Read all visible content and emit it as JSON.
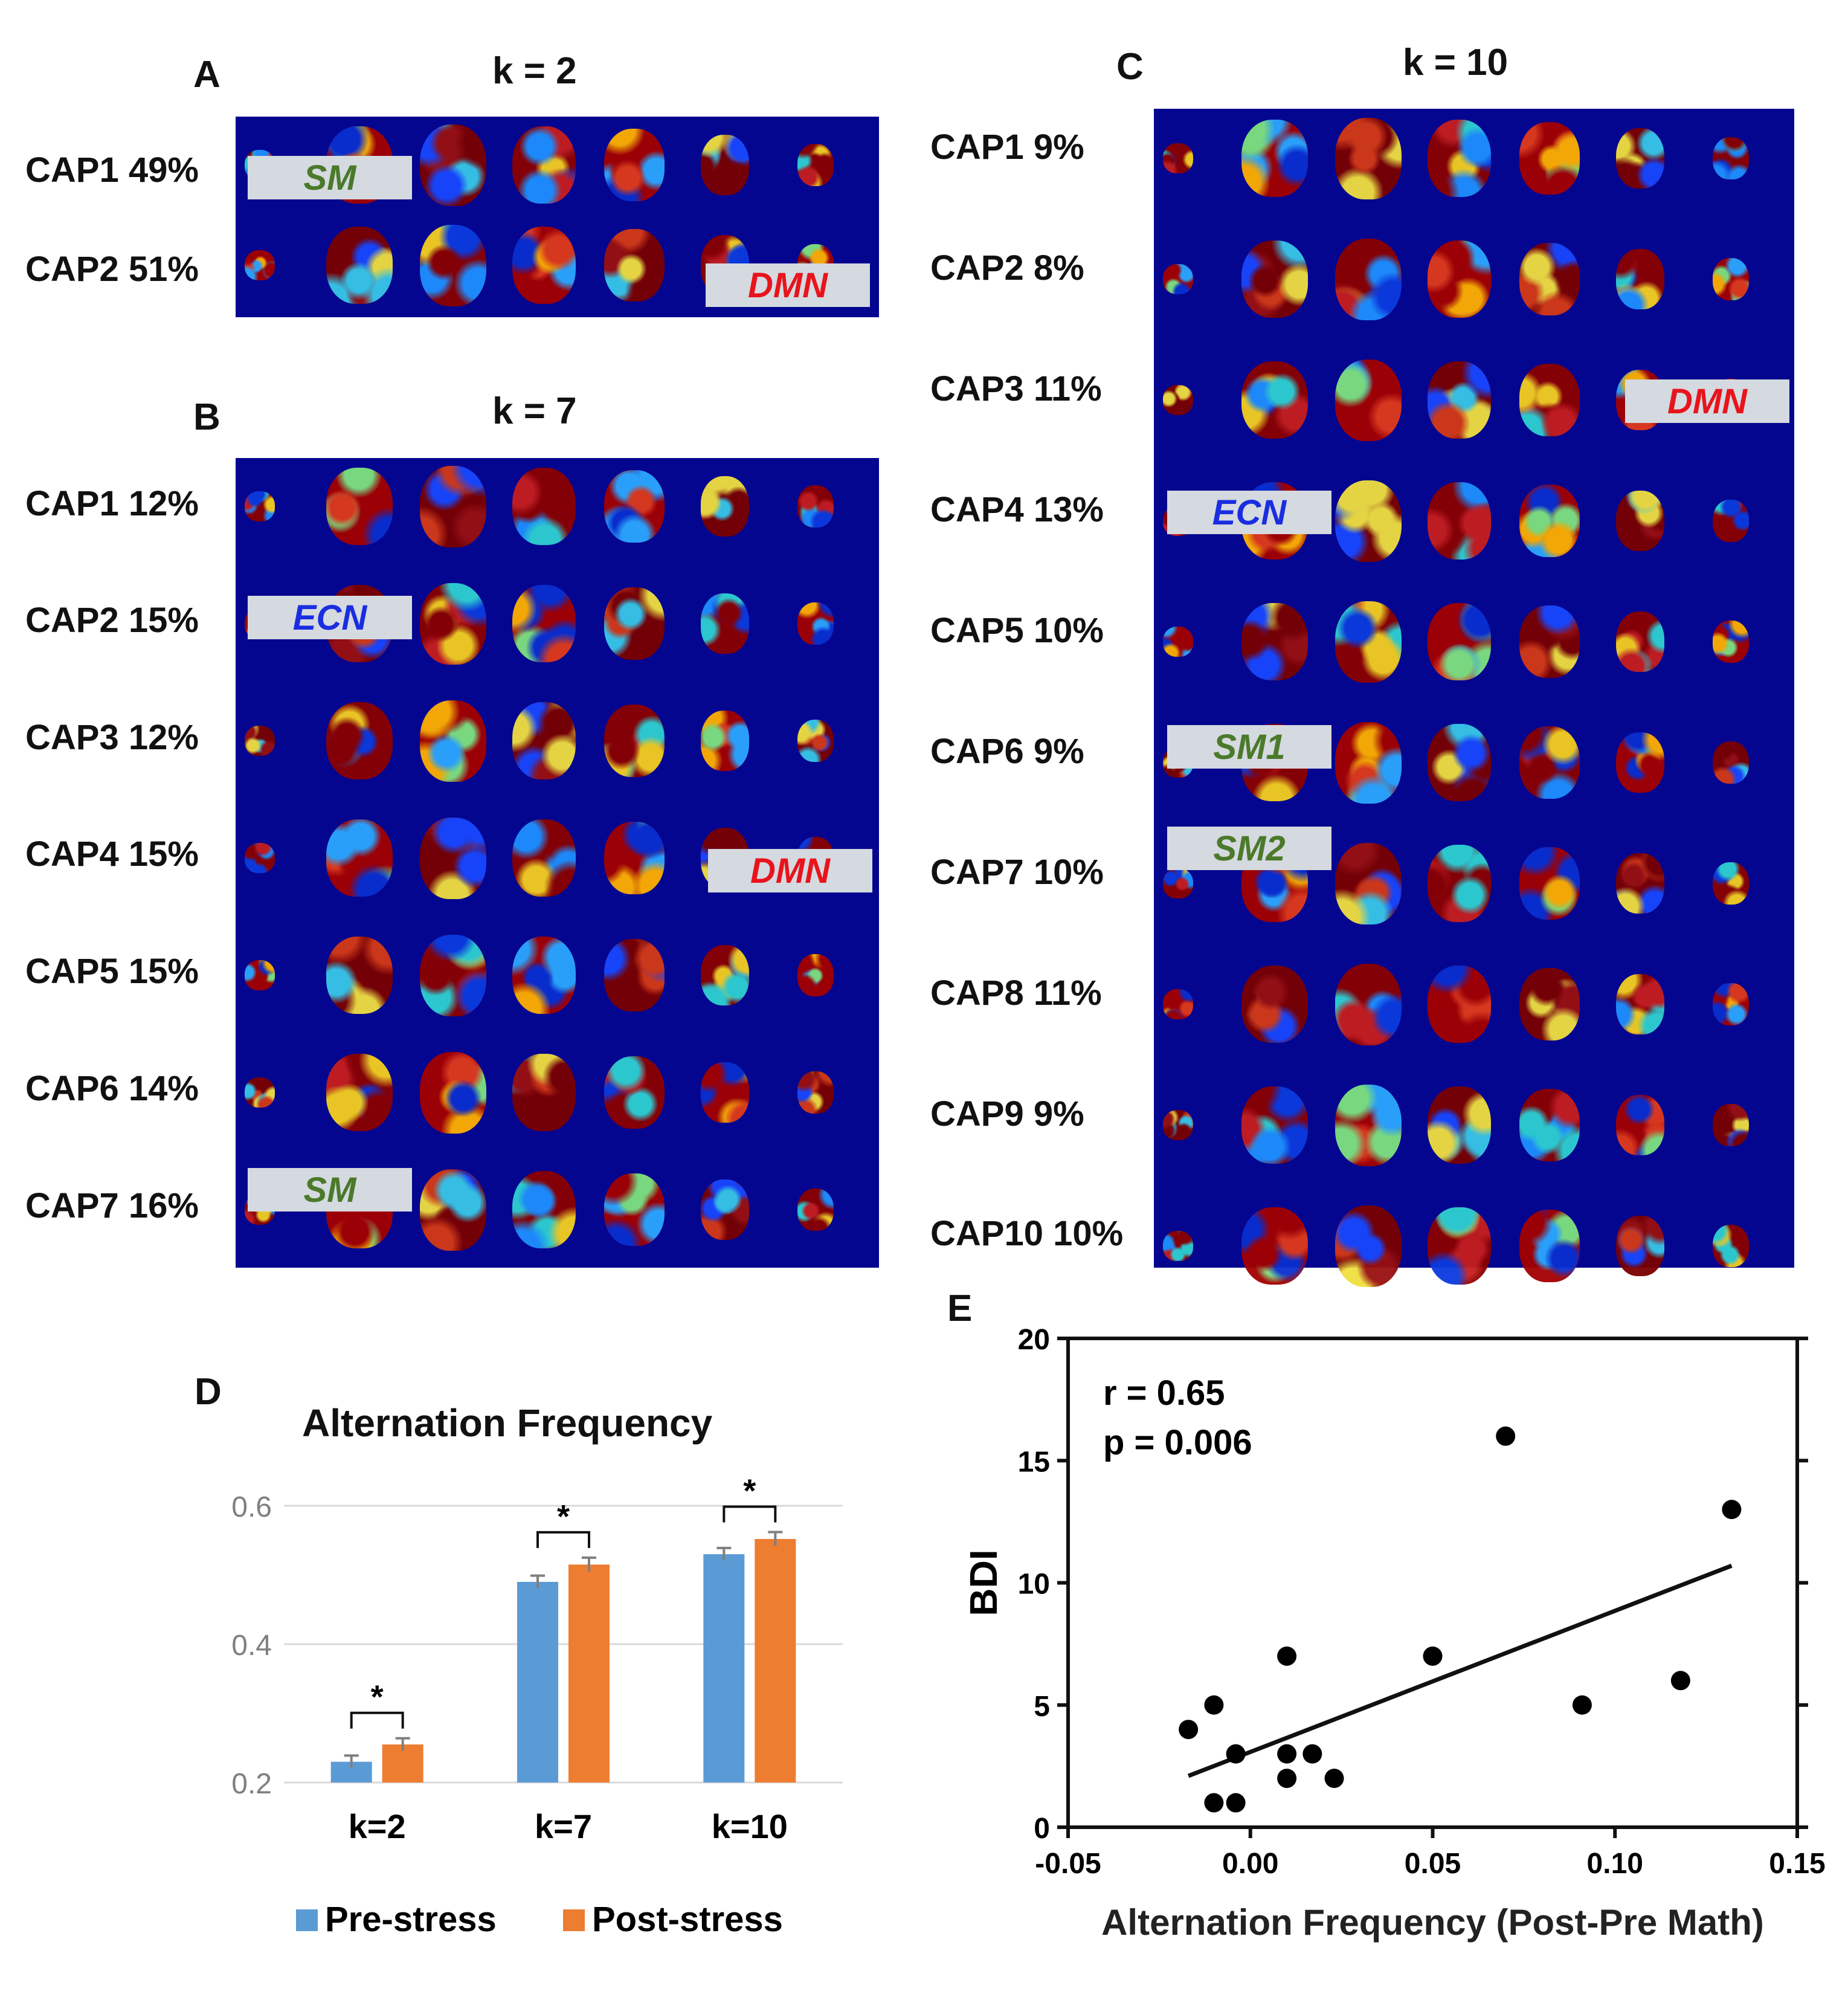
{
  "panels": {
    "A": {
      "letter": "A",
      "title": "k = 2",
      "caps": [
        {
          "name": "CAP1 49%"
        },
        {
          "name": "CAP2 51%"
        }
      ],
      "networks": {
        "sm": "SM",
        "dmn": "DMN"
      }
    },
    "B": {
      "letter": "B",
      "title": "k = 7",
      "caps": [
        {
          "name": "CAP1 12%"
        },
        {
          "name": "CAP2 15%"
        },
        {
          "name": "CAP3 12%"
        },
        {
          "name": "CAP4 15%"
        },
        {
          "name": "CAP5 15%"
        },
        {
          "name": "CAP6 14%"
        },
        {
          "name": "CAP7 16%"
        }
      ],
      "networks": {
        "ecn": "ECN",
        "dmn": "DMN",
        "sm": "SM"
      }
    },
    "C": {
      "letter": "C",
      "title": "k = 10",
      "caps": [
        {
          "name": "CAP1 9%"
        },
        {
          "name": "CAP2 8%"
        },
        {
          "name": "CAP3 11%"
        },
        {
          "name": "CAP4 13%"
        },
        {
          "name": "CAP5 10%"
        },
        {
          "name": "CAP6 9%"
        },
        {
          "name": "CAP7 10%"
        },
        {
          "name": "CAP8 11%"
        },
        {
          "name": "CAP9 9%"
        },
        {
          "name": "CAP10 10%"
        }
      ],
      "networks": {
        "dmn": "DMN",
        "ecn": "ECN",
        "sm1": "SM1",
        "sm2": "SM2"
      }
    }
  },
  "colors": {
    "brain_bg": "#05068f",
    "label_bg": "#d5d9e0",
    "sm_text": "#4a7a2a",
    "dmn_text": "#e8141c",
    "ecn_text": "#1a2ee0",
    "pre": "#5b9bd5",
    "post": "#ed7d31"
  },
  "chart_data": [
    {
      "panel": "D",
      "letter": "D",
      "type": "bar",
      "title": "Alternation Frequency",
      "categories": [
        "k=2",
        "k=7",
        "k=10"
      ],
      "series": [
        {
          "name": "Pre-stress",
          "values": [
            0.23,
            0.49,
            0.53
          ],
          "errors": [
            0.009,
            0.009,
            0.009
          ]
        },
        {
          "name": "Post-stress",
          "values": [
            0.255,
            0.515,
            0.552
          ],
          "errors": [
            0.009,
            0.01,
            0.01
          ]
        }
      ],
      "ylim": [
        0.2,
        0.6
      ],
      "yticks": [
        0.2,
        0.4,
        0.6
      ],
      "ytick_labels": [
        "0.2",
        "0.4",
        "0.6"
      ],
      "significance": [
        "*",
        "*",
        "*"
      ],
      "legend": "bottom",
      "grid": true
    },
    {
      "panel": "E",
      "letter": "E",
      "type": "scatter",
      "xlabel": "Alternation Frequency (Post-Pre Math)",
      "ylabel": "BDI",
      "xlim": [
        -0.05,
        0.15
      ],
      "ylim": [
        0,
        20
      ],
      "xticks": [
        -0.05,
        0.0,
        0.05,
        0.1,
        0.15
      ],
      "xtick_labels": [
        "-0.05",
        "0.00",
        "0.05",
        "0.10",
        "0.15"
      ],
      "yticks": [
        0,
        5,
        10,
        15,
        20
      ],
      "ytick_labels": [
        "0",
        "5",
        "10",
        "15",
        "20"
      ],
      "annotation_r": "r = 0.65",
      "annotation_p": "p = 0.006",
      "points": [
        {
          "x": -0.017,
          "y": 4
        },
        {
          "x": -0.01,
          "y": 5
        },
        {
          "x": -0.01,
          "y": 1
        },
        {
          "x": -0.004,
          "y": 3
        },
        {
          "x": -0.004,
          "y": 1
        },
        {
          "x": 0.01,
          "y": 7
        },
        {
          "x": 0.01,
          "y": 3
        },
        {
          "x": 0.01,
          "y": 2
        },
        {
          "x": 0.017,
          "y": 3
        },
        {
          "x": 0.023,
          "y": 2
        },
        {
          "x": 0.05,
          "y": 7
        },
        {
          "x": 0.07,
          "y": 16
        },
        {
          "x": 0.091,
          "y": 5
        },
        {
          "x": 0.118,
          "y": 6
        },
        {
          "x": 0.132,
          "y": 13
        }
      ],
      "fit_line": {
        "x": [
          -0.017,
          0.132
        ],
        "y": [
          2.1,
          10.7
        ]
      }
    }
  ]
}
